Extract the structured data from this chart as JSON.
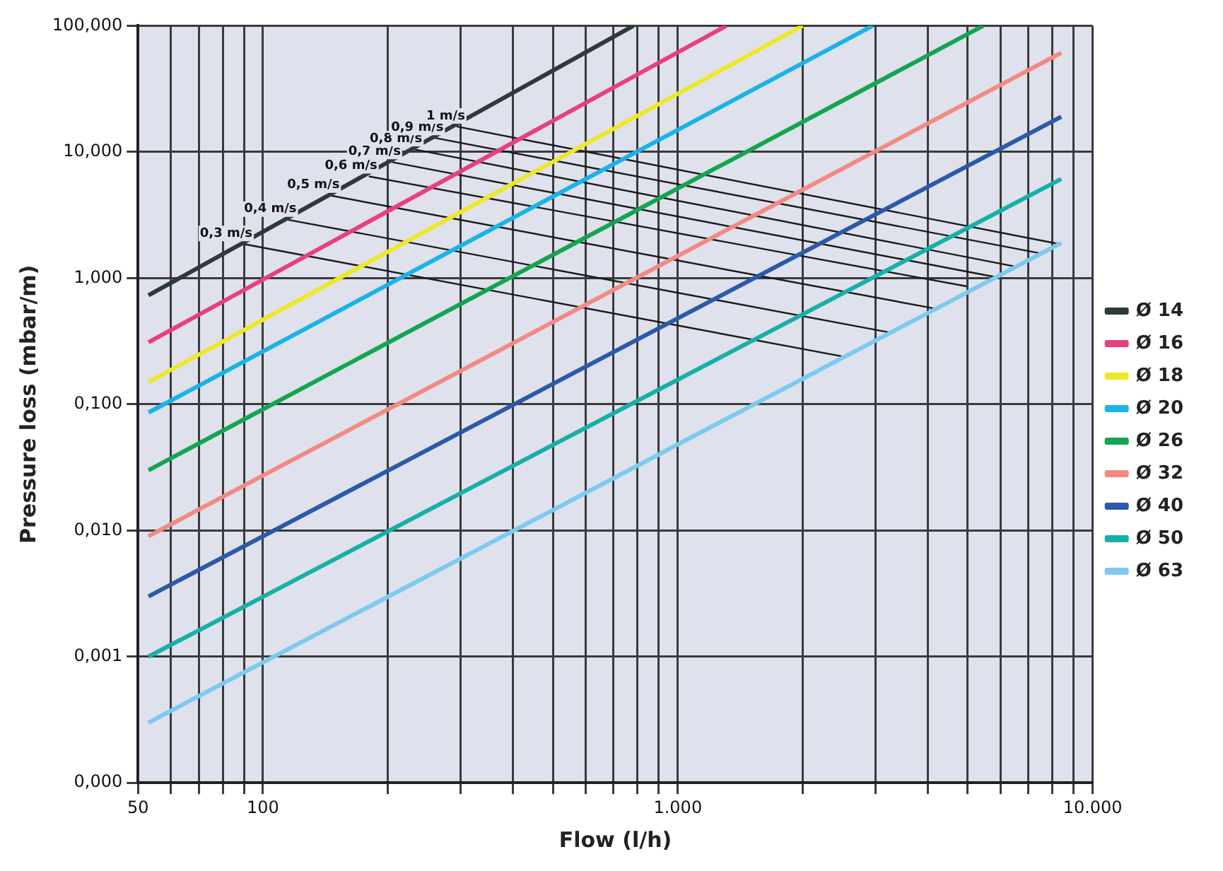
{
  "chart_data": {
    "type": "line",
    "xlabel": "Flow (l/h)",
    "ylabel": "Pressure loss (mbar/m)",
    "xlim": [
      50,
      10000
    ],
    "ylim": [
      0.0001,
      100
    ],
    "xticks": [
      50,
      {
        "value": 60,
        "label": null
      },
      {
        "value": 70,
        "label": null
      },
      {
        "value": 80,
        "label": null
      },
      {
        "value": 90,
        "label": null
      },
      100,
      {
        "value": 200,
        "label": null
      },
      {
        "value": 300,
        "label": null
      },
      {
        "value": 400,
        "label": null
      },
      {
        "value": 500,
        "label": null
      },
      {
        "value": 600,
        "label": null
      },
      {
        "value": 700,
        "label": null
      },
      {
        "value": 800,
        "label": null
      },
      {
        "value": 900,
        "label": null
      },
      {
        "value": 1000,
        "label": "1.000"
      },
      {
        "value": 2000,
        "label": null
      },
      {
        "value": 3000,
        "label": null
      },
      {
        "value": 4000,
        "label": null
      },
      {
        "value": 5000,
        "label": null
      },
      {
        "value": 6000,
        "label": null
      },
      {
        "value": 7000,
        "label": null
      },
      {
        "value": 8000,
        "label": null
      },
      {
        "value": 9000,
        "label": null
      },
      {
        "value": 10000,
        "label": "10.000"
      }
    ],
    "yticks": [
      {
        "value": 0.0001,
        "label": "0,000"
      },
      {
        "value": 0.001,
        "label": "0,001"
      },
      {
        "value": 0.01,
        "label": "0,010"
      },
      {
        "value": 0.1,
        "label": "0,100"
      },
      {
        "value": 1,
        "label": "1,000"
      },
      {
        "value": 10,
        "label": "10,000"
      },
      {
        "value": 100,
        "label": "100,000"
      }
    ],
    "log": "xy",
    "grid": true,
    "legend": "right",
    "marker": "none",
    "line_style": "solid",
    "series": [
      {
        "name": "Ø 14",
        "color": "#2d3a3a",
        "x": [
          53,
          782
        ],
        "values": [
          0.73,
          100
        ]
      },
      {
        "name": "Ø 16",
        "color": "#e8407f",
        "x": [
          53,
          1310
        ],
        "values": [
          0.31,
          100
        ]
      },
      {
        "name": "Ø 18",
        "color": "#ede826",
        "x": [
          53,
          2000
        ],
        "values": [
          0.15,
          100
        ]
      },
      {
        "name": "Ø 20",
        "color": "#1ab3e8",
        "x": [
          53,
          2950
        ],
        "values": [
          0.086,
          100
        ]
      },
      {
        "name": "Ø 26",
        "color": "#14a550",
        "x": [
          53,
          5450
        ],
        "values": [
          0.03,
          100
        ]
      },
      {
        "name": "Ø 32",
        "color": "#f28a84",
        "x": [
          53,
          8400
        ],
        "values": [
          0.009,
          61
        ]
      },
      {
        "name": "Ø 40",
        "color": "#2a5aa8",
        "x": [
          53,
          8400
        ],
        "values": [
          0.003,
          19
        ]
      },
      {
        "name": "Ø 50",
        "color": "#17b0a8",
        "x": [
          53,
          8400
        ],
        "values": [
          0.001,
          6.1
        ]
      },
      {
        "name": "Ø 63",
        "color": "#7ccaf0",
        "x": [
          53,
          8400
        ],
        "values": [
          0.0003,
          1.9
        ]
      },
      {
        "color": "#1a1a1a",
        "x": [
          90,
          2480
        ],
        "values": [
          1.86,
          0.24
        ]
      },
      {
        "color": "#1a1a1a",
        "x": [
          115,
          3250
        ],
        "values": [
          2.9,
          0.37
        ]
      },
      {
        "color": "#1a1a1a",
        "x": [
          146,
          4200
        ],
        "values": [
          4.5,
          0.57
        ]
      },
      {
        "color": "#1a1a1a",
        "x": [
          180,
          4970
        ],
        "values": [
          6.4,
          0.86
        ]
      },
      {
        "color": "#1a1a1a",
        "x": [
          205,
          5820
        ],
        "values": [
          8.3,
          1.02
        ]
      },
      {
        "color": "#1a1a1a",
        "x": [
          231,
          6460
        ],
        "values": [
          10.5,
          1.24
        ]
      },
      {
        "color": "#1a1a1a",
        "x": [
          260,
          7570
        ],
        "values": [
          12.9,
          1.56
        ]
      },
      {
        "color": "#1a1a1a",
        "x": [
          293,
          8320
        ],
        "values": [
          15.9,
          1.86
        ]
      }
    ],
    "annotations": [
      {
        "text": "0,3 m/s",
        "x": 90,
        "y": 1.86
      },
      {
        "text": "0,4 m/s",
        "x": 115,
        "y": 2.9
      },
      {
        "text": "0,5 m/s",
        "x": 146,
        "y": 4.5
      },
      {
        "text": "0,6 m/s",
        "x": 180,
        "y": 6.4
      },
      {
        "text": "0,7 m/s",
        "x": 205,
        "y": 8.3
      },
      {
        "text": "0,8 m/s",
        "x": 231,
        "y": 10.5
      },
      {
        "text": "0,9 m/s",
        "x": 260,
        "y": 12.9
      },
      {
        "text": "1 m/s",
        "x": 293,
        "y": 15.9
      }
    ]
  }
}
